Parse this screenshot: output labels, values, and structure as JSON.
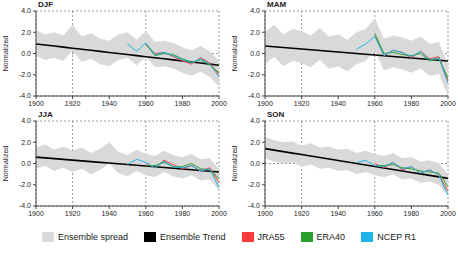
{
  "chart_data": [
    {
      "type": "line",
      "title": "DJF",
      "ylabel": "Normalized",
      "legend": "bottom",
      "grid": true,
      "x": [
        1900,
        1905,
        1910,
        1915,
        1920,
        1925,
        1930,
        1935,
        1940,
        1945,
        1950,
        1955,
        1960,
        1965,
        1970,
        1975,
        1980,
        1985,
        1990,
        1995,
        2000
      ],
      "xlim": [
        1900,
        2000
      ],
      "xticks": [
        1900,
        1920,
        1940,
        1960,
        1980,
        2000
      ],
      "ylim": [
        -4,
        4
      ],
      "yticks": [
        {
          "value": -4,
          "label": "-4.0"
        },
        {
          "value": -2,
          "label": "-2.0"
        },
        {
          "value": 0,
          "label": "0.0"
        },
        {
          "value": 2,
          "label": "2.0"
        },
        {
          "value": 4,
          "label": "4.0"
        }
      ],
      "series": [
        {
          "name": "Ensemble spread",
          "type": "area",
          "color": "#d9d9d9",
          "values": [
            [
              -0.2,
              2.2
            ],
            [
              -0.6,
              1.8
            ],
            [
              -0.4,
              2.0
            ],
            [
              -0.7,
              1.7
            ],
            [
              0.3,
              2.7
            ],
            [
              -0.8,
              1.6
            ],
            [
              -0.5,
              1.9
            ],
            [
              -1.0,
              1.4
            ],
            [
              -1.2,
              1.2
            ],
            [
              -0.6,
              1.8
            ],
            [
              -0.4,
              2.0
            ],
            [
              -1.1,
              1.3
            ],
            [
              -0.3,
              2.1
            ],
            [
              -1.3,
              1.1
            ],
            [
              -1.2,
              1.2
            ],
            [
              -1.4,
              1.0
            ],
            [
              -1.8,
              0.6
            ],
            [
              -2.1,
              0.3
            ],
            [
              -1.7,
              0.7
            ],
            [
              -2.2,
              0.2
            ],
            [
              -3.1,
              -0.7
            ]
          ]
        },
        {
          "name": "Ensemble Trend",
          "type": "line",
          "color": "#000000",
          "values": [
            0.9,
            0.8,
            0.7,
            0.6,
            0.5,
            0.4,
            0.3,
            0.2,
            0.1,
            0.0,
            -0.1,
            -0.2,
            -0.3,
            -0.4,
            -0.5,
            -0.6,
            -0.7,
            -0.8,
            -0.9,
            -1.0,
            -1.1
          ]
        },
        {
          "name": "JRA55",
          "type": "line",
          "color": "#ff3b3b",
          "values": [
            null,
            null,
            null,
            null,
            null,
            null,
            null,
            null,
            null,
            null,
            null,
            null,
            0.8,
            0.0,
            0.1,
            -0.3,
            -0.7,
            -1.0,
            -0.4,
            -0.9,
            -2.0
          ]
        },
        {
          "name": "ERA40",
          "type": "line",
          "color": "#2ca02c",
          "values": [
            null,
            null,
            null,
            null,
            null,
            null,
            null,
            null,
            null,
            null,
            null,
            null,
            0.9,
            -0.2,
            0.0,
            -0.1,
            -0.5,
            -0.8,
            -0.6,
            -1.1,
            -1.8
          ]
        },
        {
          "name": "NCEP R1",
          "type": "line",
          "color": "#1fb4e6",
          "values": [
            null,
            null,
            null,
            null,
            null,
            null,
            null,
            null,
            null,
            null,
            0.9,
            0.2,
            1.0,
            -0.1,
            0.1,
            -0.2,
            -0.6,
            -0.9,
            -0.5,
            -1.0,
            -2.2
          ]
        }
      ]
    },
    {
      "type": "line",
      "title": "MAM",
      "ylabel": "Normalized",
      "grid": true,
      "x": [
        1900,
        1905,
        1910,
        1915,
        1920,
        1925,
        1930,
        1935,
        1940,
        1945,
        1950,
        1955,
        1960,
        1965,
        1970,
        1975,
        1980,
        1985,
        1990,
        1995,
        2000
      ],
      "xlim": [
        1900,
        2000
      ],
      "xticks": [
        1900,
        1920,
        1940,
        1960,
        1980,
        2000
      ],
      "ylim": [
        -4,
        4
      ],
      "yticks": [
        {
          "value": -4,
          "label": "-4.0"
        },
        {
          "value": -2,
          "label": "-2.0"
        },
        {
          "value": 0,
          "label": "0.0"
        },
        {
          "value": 2,
          "label": "2.0"
        },
        {
          "value": 4,
          "label": "4.0"
        }
      ],
      "series": [
        {
          "name": "Ensemble spread",
          "type": "area",
          "color": "#d9d9d9",
          "values": [
            [
              -1.0,
              2.0
            ],
            [
              -0.3,
              2.7
            ],
            [
              -1.2,
              1.8
            ],
            [
              -0.7,
              2.3
            ],
            [
              -0.9,
              2.1
            ],
            [
              -1.3,
              1.7
            ],
            [
              -0.6,
              2.4
            ],
            [
              -1.4,
              1.6
            ],
            [
              -1.2,
              1.8
            ],
            [
              -1.7,
              1.3
            ],
            [
              -1.0,
              2.0
            ],
            [
              -0.7,
              2.3
            ],
            [
              0.3,
              3.3
            ],
            [
              -1.6,
              1.4
            ],
            [
              -1.3,
              1.7
            ],
            [
              -1.5,
              1.5
            ],
            [
              -1.8,
              1.2
            ],
            [
              -1.4,
              1.6
            ],
            [
              -2.1,
              0.9
            ],
            [
              -1.9,
              1.1
            ],
            [
              -4.0,
              -1.0
            ]
          ]
        },
        {
          "name": "Ensemble Trend",
          "type": "line",
          "color": "#000000",
          "values": [
            0.7,
            0.63,
            0.56,
            0.49,
            0.42,
            0.35,
            0.28,
            0.21,
            0.14,
            0.07,
            0,
            -0.07,
            -0.14,
            -0.21,
            -0.28,
            -0.35,
            -0.42,
            -0.49,
            -0.56,
            -0.63,
            -0.7
          ]
        },
        {
          "name": "JRA55",
          "type": "line",
          "color": "#ff3b3b",
          "values": [
            null,
            null,
            null,
            null,
            null,
            null,
            null,
            null,
            null,
            null,
            null,
            null,
            1.7,
            -0.2,
            0.3,
            0.1,
            -0.4,
            0.2,
            -0.5,
            -0.3,
            -2.6
          ]
        },
        {
          "name": "ERA40",
          "type": "line",
          "color": "#2ca02c",
          "values": [
            null,
            null,
            null,
            null,
            null,
            null,
            null,
            null,
            null,
            null,
            null,
            null,
            1.9,
            0.0,
            0.1,
            -0.1,
            -0.2,
            0.0,
            -0.7,
            -0.5,
            -2.3
          ]
        },
        {
          "name": "NCEP R1",
          "type": "line",
          "color": "#1fb4e6",
          "values": [
            null,
            null,
            null,
            null,
            null,
            null,
            null,
            null,
            null,
            null,
            0.4,
            0.9,
            1.6,
            -0.2,
            0.3,
            0.1,
            -0.3,
            0.2,
            -0.6,
            -0.4,
            -2.8
          ]
        }
      ]
    },
    {
      "type": "line",
      "title": "JJA",
      "ylabel": "Normalized",
      "grid": true,
      "x": [
        1900,
        1905,
        1910,
        1915,
        1920,
        1925,
        1930,
        1935,
        1940,
        1945,
        1950,
        1955,
        1960,
        1965,
        1970,
        1975,
        1980,
        1985,
        1990,
        1995,
        2000
      ],
      "xlim": [
        1900,
        2000
      ],
      "xticks": [
        1900,
        1920,
        1940,
        1960,
        1980,
        2000
      ],
      "ylim": [
        -4,
        4
      ],
      "yticks": [
        {
          "value": -4,
          "label": "-4.0"
        },
        {
          "value": -2,
          "label": "-2.0"
        },
        {
          "value": 0,
          "label": "0.0"
        },
        {
          "value": 2,
          "label": "2.0"
        },
        {
          "value": 4,
          "label": "4.0"
        }
      ],
      "series": [
        {
          "name": "Ensemble spread",
          "type": "area",
          "color": "#d9d9d9",
          "values": [
            [
              -0.5,
              1.5
            ],
            [
              -0.2,
              1.8
            ],
            [
              -0.7,
              1.3
            ],
            [
              -0.4,
              1.6
            ],
            [
              -0.8,
              1.2
            ],
            [
              -0.5,
              1.5
            ],
            [
              -1.0,
              1.0
            ],
            [
              -0.6,
              1.4
            ],
            [
              0.0,
              2.0
            ],
            [
              -0.9,
              1.1
            ],
            [
              -1.2,
              0.8
            ],
            [
              -0.7,
              1.3
            ],
            [
              -1.1,
              0.9
            ],
            [
              -1.3,
              0.7
            ],
            [
              -0.8,
              1.2
            ],
            [
              -1.2,
              0.8
            ],
            [
              -1.4,
              0.6
            ],
            [
              -1.1,
              0.9
            ],
            [
              -1.6,
              0.4
            ],
            [
              -1.5,
              0.5
            ],
            [
              -2.5,
              -0.5
            ]
          ]
        },
        {
          "name": "Ensemble Trend",
          "type": "line",
          "color": "#000000",
          "values": [
            0.6,
            0.53,
            0.46,
            0.39,
            0.32,
            0.25,
            0.18,
            0.11,
            0.04,
            -0.03,
            -0.1,
            -0.17,
            -0.24,
            -0.31,
            -0.38,
            -0.45,
            -0.52,
            -0.59,
            -0.66,
            -0.73,
            -0.8
          ]
        },
        {
          "name": "JRA55",
          "type": "line",
          "color": "#ff3b3b",
          "values": [
            null,
            null,
            null,
            null,
            null,
            null,
            null,
            null,
            null,
            null,
            null,
            null,
            0.0,
            -0.4,
            0.3,
            -0.1,
            -0.5,
            -0.2,
            -0.7,
            -0.4,
            -1.8
          ]
        },
        {
          "name": "ERA40",
          "type": "line",
          "color": "#2ca02c",
          "values": [
            null,
            null,
            null,
            null,
            null,
            null,
            null,
            null,
            null,
            null,
            null,
            null,
            -0.2,
            -0.2,
            0.1,
            -0.3,
            -0.3,
            0.0,
            -0.5,
            -0.6,
            -1.4
          ]
        },
        {
          "name": "NCEP R1",
          "type": "line",
          "color": "#1fb4e6",
          "values": [
            null,
            null,
            null,
            null,
            null,
            null,
            null,
            null,
            null,
            null,
            -0.1,
            0.4,
            0.1,
            -0.4,
            0.2,
            -0.3,
            -0.4,
            -0.2,
            -0.7,
            -0.5,
            -2.3
          ]
        }
      ]
    },
    {
      "type": "line",
      "title": "SON",
      "ylabel": "Normalized",
      "grid": true,
      "x": [
        1900,
        1905,
        1910,
        1915,
        1920,
        1925,
        1930,
        1935,
        1940,
        1945,
        1950,
        1955,
        1960,
        1965,
        1970,
        1975,
        1980,
        1985,
        1990,
        1995,
        2000
      ],
      "xlim": [
        1900,
        2000
      ],
      "xticks": [
        1900,
        1920,
        1940,
        1960,
        1980,
        2000
      ],
      "ylim": [
        -4,
        4
      ],
      "yticks": [
        {
          "value": -4,
          "label": "-4.0"
        },
        {
          "value": -2,
          "label": "-2.0"
        },
        {
          "value": 0,
          "label": "0.0"
        },
        {
          "value": 2,
          "label": "2.0"
        },
        {
          "value": 4,
          "label": "4.0"
        }
      ],
      "series": [
        {
          "name": "Ensemble spread",
          "type": "area",
          "color": "#d9d9d9",
          "values": [
            [
              0.5,
              2.5
            ],
            [
              0.2,
              2.2
            ],
            [
              0.0,
              2.0
            ],
            [
              0.1,
              2.1
            ],
            [
              -0.3,
              1.7
            ],
            [
              -0.1,
              1.9
            ],
            [
              -0.5,
              1.5
            ],
            [
              -0.4,
              1.6
            ],
            [
              -0.7,
              1.3
            ],
            [
              -0.6,
              1.4
            ],
            [
              -1.0,
              1.0
            ],
            [
              -0.8,
              1.2
            ],
            [
              -1.1,
              0.9
            ],
            [
              -1.3,
              0.7
            ],
            [
              -1.0,
              1.0
            ],
            [
              -1.5,
              0.5
            ],
            [
              -1.4,
              0.6
            ],
            [
              -1.8,
              0.2
            ],
            [
              -1.7,
              0.3
            ],
            [
              -2.0,
              0.0
            ],
            [
              -3.0,
              -1.0
            ]
          ]
        },
        {
          "name": "Ensemble Trend",
          "type": "line",
          "color": "#000000",
          "values": [
            1.4,
            1.26,
            1.12,
            0.98,
            0.84,
            0.7,
            0.56,
            0.42,
            0.28,
            0.14,
            0,
            -0.14,
            -0.28,
            -0.42,
            -0.56,
            -0.7,
            -0.84,
            -0.98,
            -1.12,
            -1.26,
            -1.4
          ]
        },
        {
          "name": "JRA55",
          "type": "line",
          "color": "#ff3b3b",
          "values": [
            null,
            null,
            null,
            null,
            null,
            null,
            null,
            null,
            null,
            null,
            null,
            null,
            0.0,
            -0.4,
            0.1,
            -0.6,
            -0.3,
            -0.9,
            -0.6,
            -1.1,
            -2.6
          ]
        },
        {
          "name": "ERA40",
          "type": "line",
          "color": "#2ca02c",
          "values": [
            null,
            null,
            null,
            null,
            null,
            null,
            null,
            null,
            null,
            null,
            null,
            null,
            -0.2,
            -0.2,
            -0.1,
            -0.4,
            -0.5,
            -0.7,
            -0.8,
            -0.9,
            -2.2
          ]
        },
        {
          "name": "NCEP R1",
          "type": "line",
          "color": "#1fb4e6",
          "values": [
            null,
            null,
            null,
            null,
            null,
            null,
            null,
            null,
            null,
            null,
            0.1,
            0.3,
            -0.2,
            -0.3,
            0.1,
            -0.5,
            -0.3,
            -0.9,
            -0.6,
            -1.1,
            -3.0
          ]
        }
      ]
    }
  ]
}
